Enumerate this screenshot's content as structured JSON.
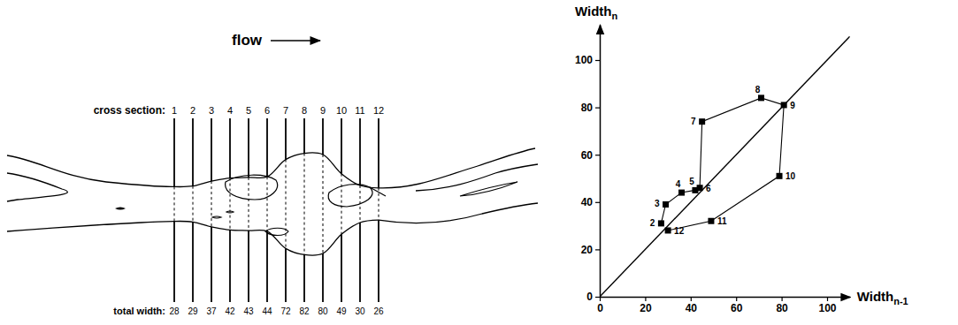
{
  "diagram": {
    "flow_label": "flow",
    "section_label": "cross section:",
    "width_label": "total width:",
    "sections": [
      1,
      2,
      3,
      4,
      5,
      6,
      7,
      8,
      9,
      10,
      11,
      12
    ],
    "widths": [
      28,
      29,
      37,
      42,
      43,
      44,
      72,
      82,
      80,
      49,
      30,
      26
    ]
  },
  "chart_data": {
    "type": "line",
    "marker": "square",
    "color": "#000000",
    "xlabel": {
      "text": "Width",
      "subscript": "n-1"
    },
    "ylabel": {
      "text": "Width",
      "subscript": "n"
    },
    "x": [
      27,
      29,
      36,
      42,
      44,
      45,
      71,
      81,
      79,
      49,
      30
    ],
    "values": [
      31,
      39,
      44,
      45,
      46,
      74,
      84,
      81,
      51,
      32,
      28
    ],
    "point_labels": [
      "2",
      "3",
      "4",
      "5",
      "6",
      "7",
      "8",
      "9",
      "10",
      "11",
      "12"
    ],
    "xlim": [
      0,
      110
    ],
    "ylim": [
      0,
      115
    ],
    "xticks": [
      0,
      20,
      40,
      60,
      80,
      100
    ],
    "yticks": [
      0,
      20,
      40,
      60,
      80,
      100
    ]
  }
}
